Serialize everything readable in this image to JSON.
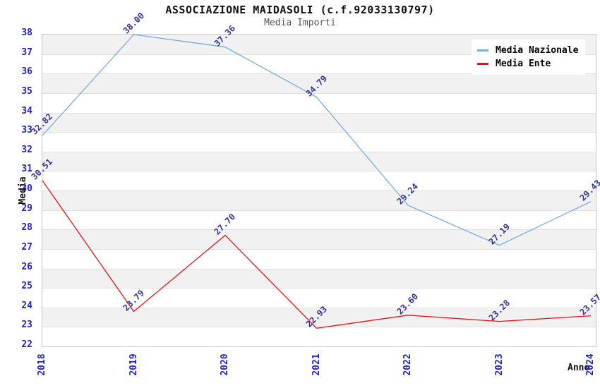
{
  "header": {
    "title": "ASSOCIAZIONE MAIDASOLI (c.f.92033130797)",
    "subtitle": "Media Importi"
  },
  "chart_data": {
    "type": "line",
    "title": "ASSOCIAZIONE MAIDASOLI (c.f.92033130797)",
    "subtitle": "Media Importi",
    "x": [
      2018,
      2019,
      2020,
      2021,
      2022,
      2023,
      2024
    ],
    "series": [
      {
        "name": "Media Nazionale",
        "color": "#7aaede",
        "values": [
          32.82,
          38.0,
          37.36,
          34.79,
          29.24,
          27.19,
          29.43
        ]
      },
      {
        "name": "Media Ente",
        "color": "#ee1111",
        "values": [
          30.51,
          23.79,
          27.7,
          22.93,
          23.6,
          23.28,
          23.57
        ]
      }
    ],
    "xlabel": "Anno",
    "ylabel": "Media",
    "ylim": [
      22,
      38
    ],
    "ytick_step": 1,
    "legend_position": "top-right",
    "grid": "horizontal-bands",
    "band_colors": [
      "#f1f1f1",
      "#ffffff"
    ],
    "tick_label_color": "#2222cc",
    "data_label_color": "#333399"
  }
}
